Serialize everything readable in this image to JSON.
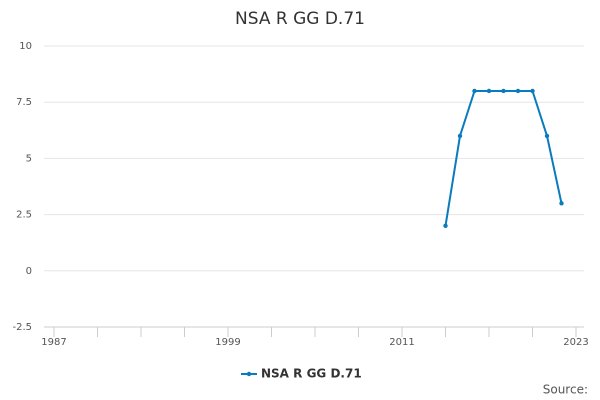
{
  "chart_data": {
    "type": "line",
    "title": "NSA R GG D.71",
    "x": [
      2014,
      2015,
      2016,
      2017,
      2018,
      2019,
      2020,
      2021,
      2022
    ],
    "series": [
      {
        "name": "NSA R GG D.71",
        "color": "#0a7bbd",
        "values": [
          2,
          6,
          8,
          8,
          8,
          8,
          8,
          6,
          3
        ]
      }
    ],
    "xlim": [
      1987,
      2023
    ],
    "xticks": [
      1987,
      1999,
      2011,
      2023
    ],
    "xminorticks": [
      1990,
      1993,
      1996,
      2002,
      2005,
      2008,
      2014,
      2017,
      2020
    ],
    "ylim": [
      -2.5,
      10
    ],
    "yticks": [
      -2.5,
      0,
      2.5,
      5,
      7.5,
      10
    ],
    "grid": true,
    "legend": "bottom",
    "source": "Source:"
  }
}
